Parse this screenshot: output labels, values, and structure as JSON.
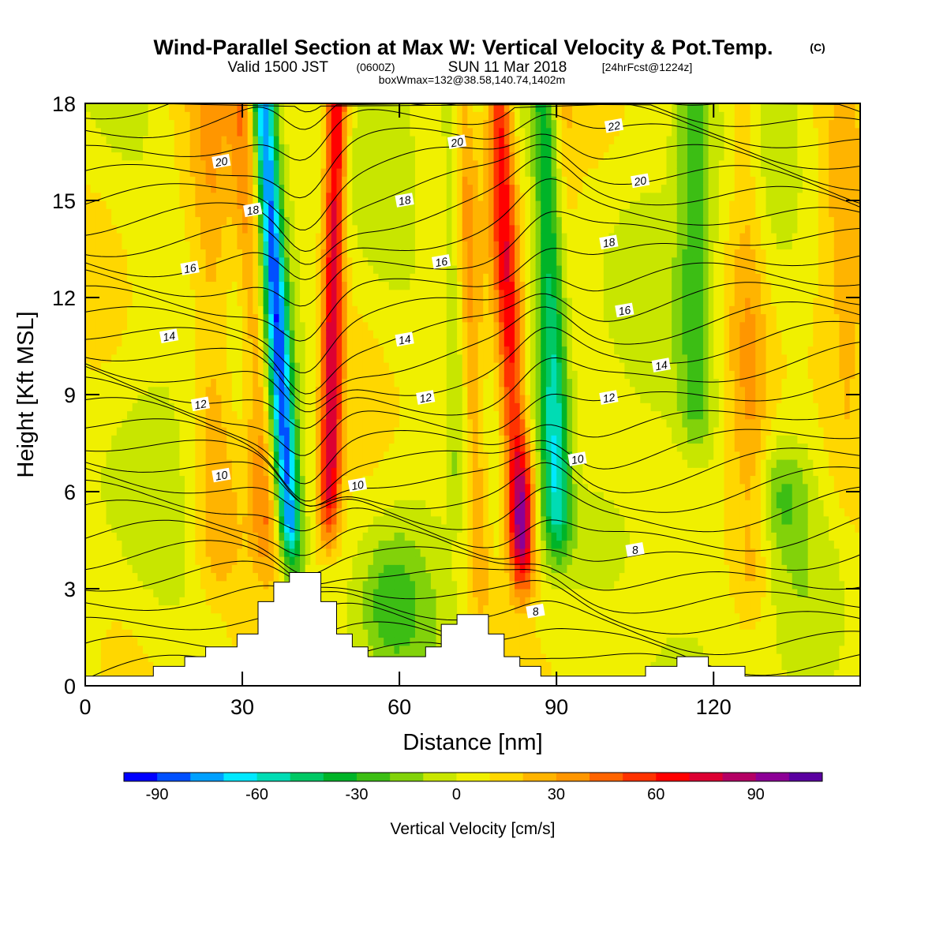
{
  "title": {
    "main": "Wind-Parallel Section at Max W: Vertical Velocity & Pot.Temp.",
    "copyright": "(C)",
    "valid_prefix": "Valid 1500 JST",
    "utc": "(0600Z)",
    "valid_date": "SUN 11 Mar 2018",
    "forecast": "[24hrFcst@1224z]",
    "box": "boxWmax=132@38.58,140.74,1402m"
  },
  "chart_data": {
    "type": "heatmap",
    "xlabel": "Distance [nm]",
    "ylabel": "Height [Kft MSL]",
    "xlim": [
      0,
      148
    ],
    "ylim": [
      0,
      18
    ],
    "x_ticks": [
      0,
      30,
      60,
      90,
      120
    ],
    "y_ticks": [
      0,
      3,
      6,
      9,
      12,
      15,
      18
    ],
    "colorbar": {
      "label": "Vertical Velocity [cm/s]",
      "ticks": [
        -90,
        -60,
        -30,
        0,
        30,
        60,
        90
      ],
      "levels": [
        -100,
        -90,
        -80,
        -70,
        -60,
        -50,
        -40,
        -30,
        -20,
        -10,
        0,
        10,
        20,
        30,
        40,
        50,
        60,
        70,
        80,
        90,
        100,
        110
      ],
      "colors": [
        "#0000ff",
        "#0050ff",
        "#00a0ff",
        "#00e8ff",
        "#00dcb4",
        "#00c864",
        "#00b428",
        "#3cbe14",
        "#82d20a",
        "#c8e600",
        "#f0f000",
        "#ffd700",
        "#ffb400",
        "#ff9600",
        "#ff6400",
        "#ff3200",
        "#ff0000",
        "#dc0032",
        "#b40064",
        "#8c0096",
        "#5a00a0"
      ]
    },
    "features": {
      "downdrafts": [
        {
          "x_km0": 41,
          "x_top": 34,
          "peak": -80
        },
        {
          "x_km0": 91,
          "x_top": 88,
          "peak": -70
        }
      ],
      "updrafts": [
        {
          "x_km0": 46,
          "x_top": 48,
          "peak": 75
        },
        {
          "x_km0": 84,
          "x_top": 80,
          "peak": 105
        }
      ]
    },
    "contour_labels": [
      {
        "text": "20",
        "x": 26,
        "y": 16.2
      },
      {
        "text": "18",
        "x": 32,
        "y": 14.7
      },
      {
        "text": "16",
        "x": 20,
        "y": 12.9
      },
      {
        "text": "14",
        "x": 16,
        "y": 10.8
      },
      {
        "text": "12",
        "x": 22,
        "y": 8.7
      },
      {
        "text": "10",
        "x": 26,
        "y": 6.5
      },
      {
        "text": "20",
        "x": 71,
        "y": 16.8
      },
      {
        "text": "18",
        "x": 61,
        "y": 15.0
      },
      {
        "text": "16",
        "x": 68,
        "y": 13.1
      },
      {
        "text": "14",
        "x": 61,
        "y": 10.7
      },
      {
        "text": "12",
        "x": 65,
        "y": 8.9
      },
      {
        "text": "10",
        "x": 52,
        "y": 6.2
      },
      {
        "text": "22",
        "x": 101,
        "y": 17.3
      },
      {
        "text": "20",
        "x": 106,
        "y": 15.6
      },
      {
        "text": "18",
        "x": 100,
        "y": 13.7
      },
      {
        "text": "16",
        "x": 103,
        "y": 11.6
      },
      {
        "text": "14",
        "x": 110,
        "y": 9.9
      },
      {
        "text": "12",
        "x": 100,
        "y": 8.9
      },
      {
        "text": "10",
        "x": 94,
        "y": 7.0
      },
      {
        "text": "8",
        "x": 105,
        "y": 4.2
      },
      {
        "text": "8",
        "x": 86,
        "y": 2.3
      }
    ],
    "terrain": [
      [
        0,
        0.3
      ],
      [
        13,
        0.3
      ],
      [
        13,
        0.6
      ],
      [
        19,
        0.6
      ],
      [
        19,
        0.9
      ],
      [
        23,
        0.9
      ],
      [
        23,
        1.2
      ],
      [
        29,
        1.2
      ],
      [
        29,
        1.6
      ],
      [
        33,
        1.6
      ],
      [
        33,
        2.6
      ],
      [
        36,
        2.6
      ],
      [
        36,
        3.2
      ],
      [
        39,
        3.2
      ],
      [
        39,
        3.5
      ],
      [
        45,
        3.5
      ],
      [
        45,
        2.6
      ],
      [
        48,
        2.6
      ],
      [
        48,
        1.6
      ],
      [
        51,
        1.6
      ],
      [
        51,
        1.2
      ],
      [
        54,
        1.2
      ],
      [
        54,
        0.9
      ],
      [
        65,
        0.9
      ],
      [
        65,
        1.2
      ],
      [
        68,
        1.2
      ],
      [
        68,
        1.9
      ],
      [
        71,
        1.9
      ],
      [
        71,
        2.2
      ],
      [
        77,
        2.2
      ],
      [
        77,
        1.6
      ],
      [
        80,
        1.6
      ],
      [
        80,
        0.9
      ],
      [
        83,
        0.9
      ],
      [
        83,
        0.6
      ],
      [
        87,
        0.6
      ],
      [
        87,
        0.3
      ],
      [
        107,
        0.3
      ],
      [
        107,
        0.6
      ],
      [
        113,
        0.6
      ],
      [
        113,
        0.9
      ],
      [
        119,
        0.9
      ],
      [
        119,
        0.6
      ],
      [
        126,
        0.6
      ],
      [
        126,
        0.3
      ],
      [
        148,
        0.3
      ]
    ]
  }
}
